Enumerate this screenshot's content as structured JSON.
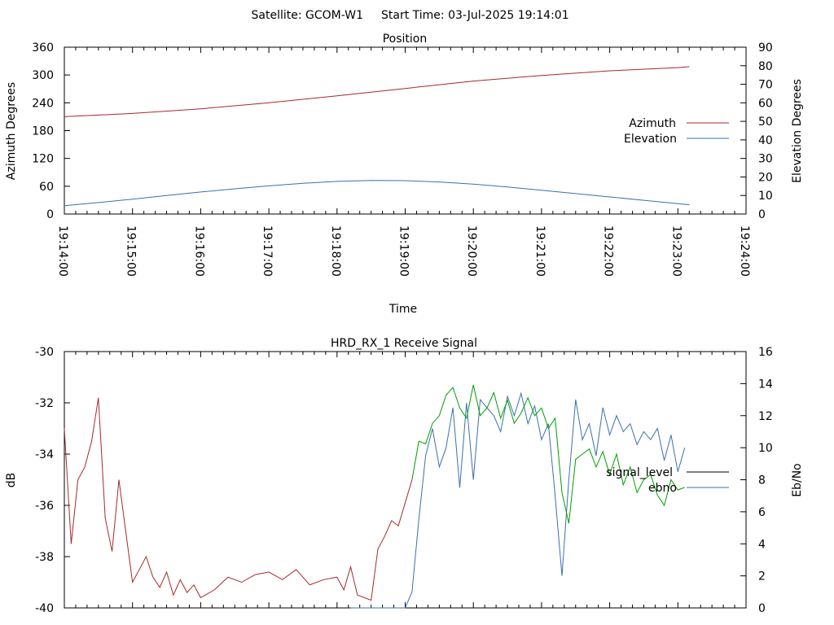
{
  "header": {
    "satellite_label": "Satellite: GCOM-W1",
    "start_time_label": "Start Time: 03-Jul-2025 19:14:01"
  },
  "colors": {
    "azimuth": "#a52a2a",
    "elevation": "#3b70b0",
    "signal_level_legend": "#000000",
    "signal_level_high": "#00a000",
    "ebno": "#3b70b0"
  },
  "chart_data": [
    {
      "type": "line",
      "title": "Position",
      "xlabel": "Time",
      "ylabel": "Azimuth Degrees",
      "y2label": "Elevation Degrees",
      "xlim": [
        "19:14:00",
        "19:24:00"
      ],
      "ylim": [
        0,
        360
      ],
      "y2lim": [
        0,
        90
      ],
      "x_ticks": [
        "19:14:00",
        "19:15:00",
        "19:16:00",
        "19:17:00",
        "19:18:00",
        "19:19:00",
        "19:20:00",
        "19:21:00",
        "19:22:00",
        "19:23:00",
        "19:24:00"
      ],
      "y_ticks": [
        0,
        60,
        120,
        180,
        240,
        300,
        360
      ],
      "y2_ticks": [
        0,
        10,
        20,
        30,
        40,
        50,
        60,
        70,
        80,
        90
      ],
      "grid": false,
      "legend_position": "right",
      "series": [
        {
          "name": "Azimuth",
          "axis": "y",
          "x": [
            "19:14:00",
            "19:15:00",
            "19:16:00",
            "19:17:00",
            "19:18:00",
            "19:19:00",
            "19:20:00",
            "19:21:00",
            "19:22:00",
            "19:23:00",
            "19:23:10"
          ],
          "values": [
            210,
            217,
            227,
            240,
            255,
            271,
            287,
            299,
            309,
            316,
            318
          ]
        },
        {
          "name": "Elevation",
          "axis": "y2",
          "x": [
            "19:14:00",
            "19:14:30",
            "19:15:00",
            "19:15:30",
            "19:16:00",
            "19:16:30",
            "19:17:00",
            "19:17:30",
            "19:18:00",
            "19:18:30",
            "19:19:00",
            "19:19:30",
            "19:20:00",
            "19:20:30",
            "19:21:00",
            "19:21:30",
            "19:22:00",
            "19:22:30",
            "19:23:00",
            "19:23:10"
          ],
          "values": [
            4.5,
            6.2,
            8.0,
            10.0,
            11.9,
            13.6,
            15.2,
            16.6,
            17.6,
            18.1,
            18.0,
            17.3,
            16.1,
            14.6,
            12.8,
            11.0,
            9.2,
            7.4,
            5.6,
            5.0
          ]
        }
      ]
    },
    {
      "type": "line",
      "title": "HRD_RX_1 Receive Signal",
      "xlabel": "",
      "ylabel": "dB",
      "y2label": "Eb/No",
      "xlim": [
        "19:14:00",
        "19:24:00"
      ],
      "ylim": [
        -40,
        -30
      ],
      "y2lim": [
        0,
        16
      ],
      "y_ticks": [
        -40,
        -38,
        -36,
        -34,
        -32,
        -30
      ],
      "y2_ticks": [
        0,
        2,
        4,
        6,
        8,
        10,
        12,
        14,
        16
      ],
      "grid": false,
      "legend_position": "right",
      "series": [
        {
          "name": "signal_level",
          "axis": "y",
          "x": [
            "19:14:00",
            "19:14:06",
            "19:14:12",
            "19:14:18",
            "19:14:24",
            "19:14:30",
            "19:14:36",
            "19:14:42",
            "19:14:48",
            "19:14:54",
            "19:15:00",
            "19:15:06",
            "19:15:12",
            "19:15:18",
            "19:15:24",
            "19:15:30",
            "19:15:36",
            "19:15:42",
            "19:15:48",
            "19:15:54",
            "19:16:00",
            "19:16:12",
            "19:16:24",
            "19:16:36",
            "19:16:48",
            "19:17:00",
            "19:17:12",
            "19:17:24",
            "19:17:36",
            "19:17:48",
            "19:18:00",
            "19:18:06",
            "19:18:12",
            "19:18:18",
            "19:18:24",
            "19:18:30",
            "19:18:36",
            "19:18:42",
            "19:18:48",
            "19:18:54",
            "19:19:00",
            "19:19:06",
            "19:19:12",
            "19:19:18",
            "19:19:24",
            "19:19:30",
            "19:19:36",
            "19:19:42",
            "19:19:48",
            "19:19:54",
            "19:20:00",
            "19:20:06",
            "19:20:12",
            "19:20:18",
            "19:20:24",
            "19:20:30",
            "19:20:36",
            "19:20:42",
            "19:20:48",
            "19:20:54",
            "19:21:00",
            "19:21:06",
            "19:21:12",
            "19:21:18",
            "19:21:24",
            "19:21:30",
            "19:21:36",
            "19:21:42",
            "19:21:48",
            "19:21:54",
            "19:22:00",
            "19:22:06",
            "19:22:12",
            "19:22:18",
            "19:22:24",
            "19:22:30",
            "19:22:36",
            "19:22:42",
            "19:22:48",
            "19:22:54",
            "19:23:00",
            "19:23:06"
          ],
          "values": [
            -33.0,
            -37.5,
            -35.0,
            -34.5,
            -33.5,
            -31.8,
            -36.5,
            -37.8,
            -35.0,
            -37.0,
            -39.0,
            -38.5,
            -38.0,
            -38.8,
            -39.2,
            -38.6,
            -39.5,
            -38.9,
            -39.4,
            -39.1,
            -39.6,
            -39.3,
            -38.8,
            -39.0,
            -38.7,
            -38.6,
            -38.9,
            -38.5,
            -39.1,
            -38.9,
            -38.8,
            -39.3,
            -38.4,
            -39.5,
            -39.6,
            -39.7,
            -37.7,
            -37.2,
            -36.6,
            -36.8,
            -35.9,
            -35.0,
            -33.5,
            -33.6,
            -32.8,
            -32.5,
            -31.7,
            -31.4,
            -32.2,
            -32.6,
            -31.3,
            -32.5,
            -32.2,
            -31.6,
            -32.6,
            -31.9,
            -32.8,
            -32.4,
            -31.8,
            -32.5,
            -32.2,
            -33.0,
            -32.6,
            -35.5,
            -36.7,
            -34.2,
            -34.0,
            -33.8,
            -34.5,
            -33.9,
            -34.8,
            -34.0,
            -35.2,
            -34.5,
            -35.5,
            -35.0,
            -34.8,
            -35.6,
            -36.0,
            -35.0,
            -35.4,
            -35.3
          ]
        },
        {
          "name": "ebno",
          "axis": "y2",
          "x": [
            "19:18:12",
            "19:18:24",
            "19:18:36",
            "19:18:48",
            "19:18:54",
            "19:19:00",
            "19:19:06",
            "19:19:12",
            "19:19:18",
            "19:19:24",
            "19:19:30",
            "19:19:36",
            "19:19:42",
            "19:19:48",
            "19:19:54",
            "19:20:00",
            "19:20:06",
            "19:20:12",
            "19:20:18",
            "19:20:24",
            "19:20:30",
            "19:20:36",
            "19:20:42",
            "19:20:48",
            "19:20:54",
            "19:21:00",
            "19:21:06",
            "19:21:12",
            "19:21:18",
            "19:21:24",
            "19:21:30",
            "19:21:36",
            "19:21:42",
            "19:21:48",
            "19:21:54",
            "19:22:00",
            "19:22:06",
            "19:22:12",
            "19:22:18",
            "19:22:24",
            "19:22:30",
            "19:22:36",
            "19:22:42",
            "19:22:48",
            "19:22:54",
            "19:23:00",
            "19:23:06"
          ],
          "values": [
            0.0,
            0.0,
            0.0,
            0.0,
            0.0,
            0.0,
            1.0,
            5.5,
            9.5,
            11.2,
            8.8,
            10.0,
            12.5,
            7.5,
            12.8,
            8.0,
            13.0,
            12.5,
            12.0,
            11.0,
            13.2,
            12.0,
            13.4,
            11.5,
            12.6,
            10.5,
            11.5,
            7.0,
            2.0,
            8.0,
            13.0,
            10.5,
            11.5,
            9.5,
            12.5,
            10.8,
            12.0,
            11.0,
            11.5,
            10.2,
            11.0,
            10.5,
            11.2,
            9.2,
            10.8,
            8.5,
            10.0
          ]
        }
      ],
      "legend_labels": [
        "signal_level",
        "ebno"
      ]
    }
  ]
}
